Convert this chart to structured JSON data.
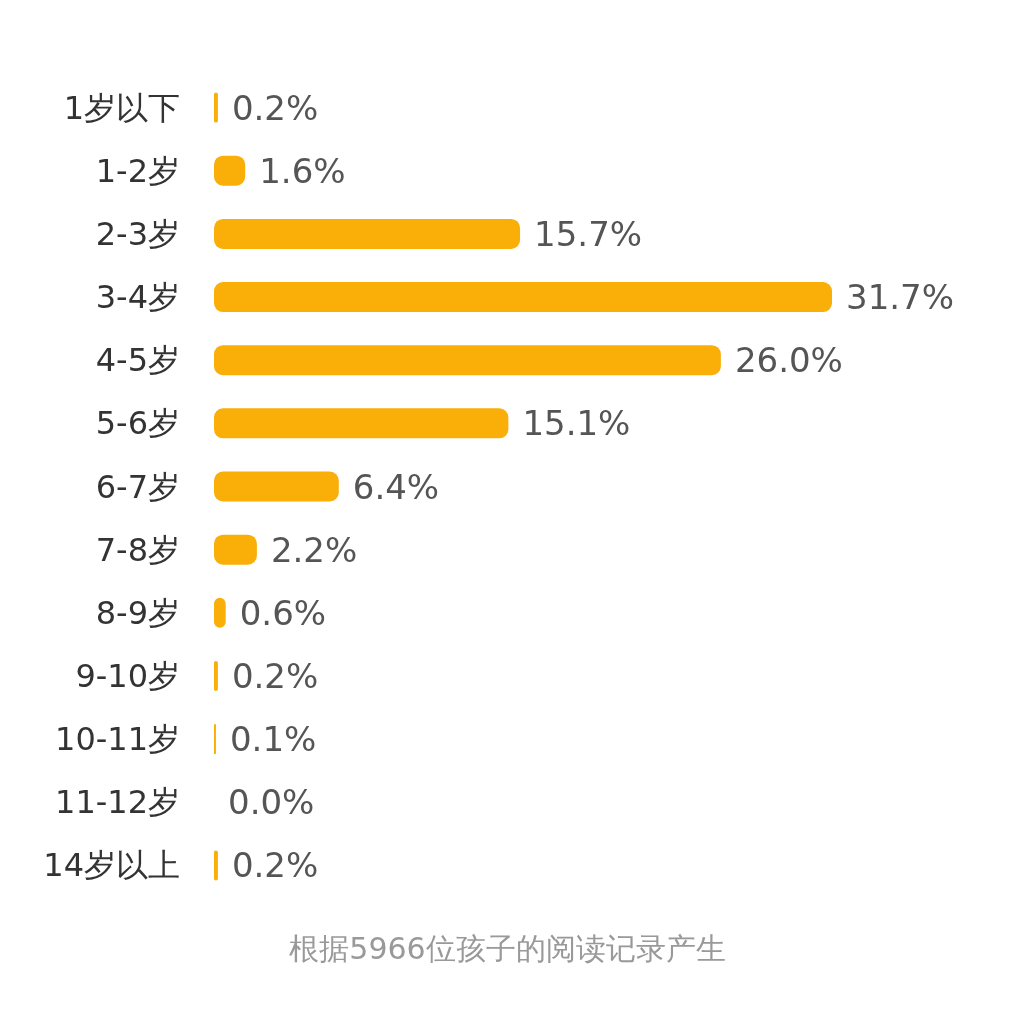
{
  "chart_data": {
    "type": "bar",
    "orientation": "horizontal",
    "categories": [
      "1岁以下",
      "1-2岁",
      "2-3岁",
      "3-4岁",
      "4-5岁",
      "5-6岁",
      "6-7岁",
      "7-8岁",
      "8-9岁",
      "9-10岁",
      "10-11岁",
      "11-12岁",
      "14岁以上"
    ],
    "values": [
      0.2,
      1.6,
      15.7,
      31.7,
      26.0,
      15.1,
      6.4,
      2.2,
      0.6,
      0.2,
      0.1,
      0.0,
      0.2
    ],
    "value_labels": [
      "0.2%",
      "1.6%",
      "15.7%",
      "31.7%",
      "26.0%",
      "15.1%",
      "6.4%",
      "2.2%",
      "0.6%",
      "0.2%",
      "0.1%",
      "0.0%",
      "0.2%"
    ],
    "color": "#f9ae08",
    "grid": false,
    "annotations": [
      "根据5966位孩子的阅读记录产生"
    ]
  }
}
